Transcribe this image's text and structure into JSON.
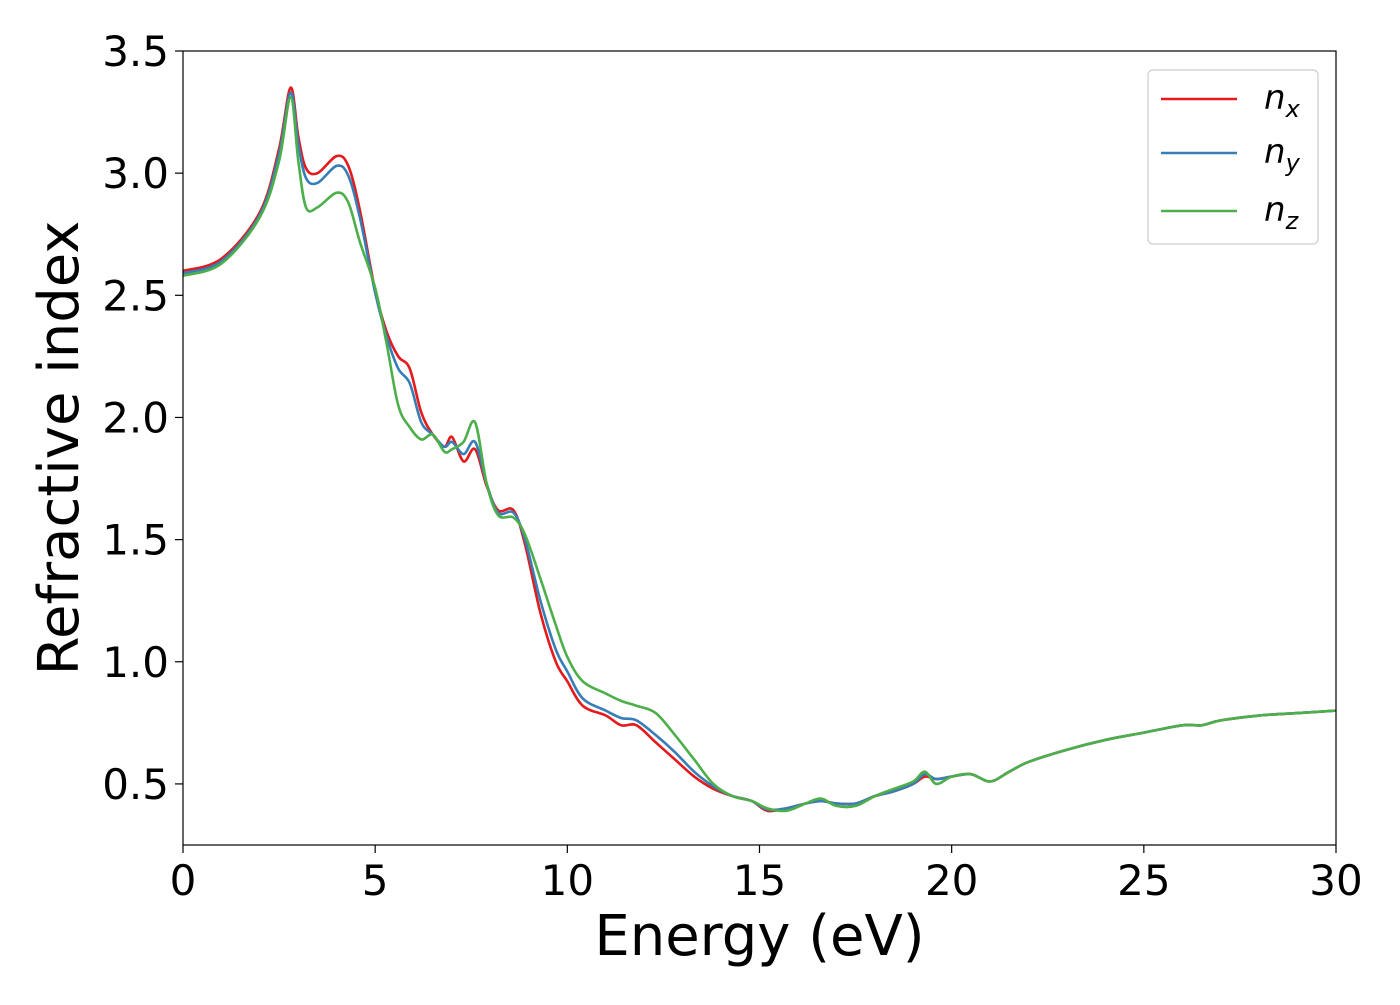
{
  "chart_data": {
    "type": "line",
    "title": "",
    "xlabel": "Energy (eV)",
    "ylabel": "Refractive index",
    "xlim": [
      0,
      30
    ],
    "ylim": [
      0.25,
      3.5
    ],
    "xticks": [
      0,
      5,
      10,
      15,
      20,
      25,
      30
    ],
    "xtick_labels": [
      "0",
      "5",
      "10",
      "15",
      "20",
      "25",
      "30"
    ],
    "yticks": [
      0.5,
      1.0,
      1.5,
      2.0,
      2.5,
      3.0,
      3.5
    ],
    "ytick_labels": [
      "0.5",
      "1.0",
      "1.5",
      "2.0",
      "2.5",
      "3.0",
      "3.5"
    ],
    "grid": false,
    "legend_position": "top-right",
    "series": [
      {
        "name": "n_x",
        "base": "n",
        "sub": "x",
        "color": "#e41a1c",
        "x": [
          0,
          1,
          2,
          2.5,
          2.8,
          3.0,
          3.2,
          3.5,
          4.0,
          4.3,
          4.6,
          5.0,
          5.3,
          5.6,
          5.9,
          6.2,
          6.5,
          6.8,
          7.0,
          7.3,
          7.6,
          7.9,
          8.2,
          8.6,
          8.9,
          9.3,
          9.7,
          10.0,
          10.4,
          11.0,
          11.4,
          11.8,
          12.3,
          12.8,
          13.3,
          13.8,
          14.3,
          14.8,
          15.2,
          15.7,
          16.2,
          16.6,
          17.0,
          17.5,
          18.0,
          18.5,
          19.0,
          19.3,
          19.6,
          20.0,
          20.5,
          21.0,
          21.5,
          22.0,
          23.0,
          24.0,
          25.0,
          26.0,
          26.5,
          27.0,
          28.0,
          29.0,
          30.0
        ],
        "y": [
          2.6,
          2.65,
          2.84,
          3.1,
          3.35,
          3.15,
          3.02,
          3.0,
          3.07,
          3.03,
          2.85,
          2.52,
          2.35,
          2.25,
          2.2,
          2.02,
          1.93,
          1.88,
          1.92,
          1.82,
          1.87,
          1.72,
          1.62,
          1.62,
          1.48,
          1.2,
          1.0,
          0.92,
          0.82,
          0.78,
          0.74,
          0.74,
          0.67,
          0.6,
          0.53,
          0.48,
          0.45,
          0.43,
          0.39,
          0.4,
          0.42,
          0.43,
          0.42,
          0.42,
          0.45,
          0.47,
          0.5,
          0.53,
          0.52,
          0.53,
          0.54,
          0.51,
          0.55,
          0.59,
          0.64,
          0.68,
          0.71,
          0.74,
          0.74,
          0.76,
          0.78,
          0.79,
          0.8
        ]
      },
      {
        "name": "n_y",
        "base": "n",
        "sub": "y",
        "color": "#377eb8",
        "x": [
          0,
          1,
          2,
          2.5,
          2.8,
          3.0,
          3.2,
          3.5,
          4.0,
          4.3,
          4.6,
          5.0,
          5.3,
          5.6,
          5.9,
          6.2,
          6.5,
          6.8,
          7.0,
          7.3,
          7.6,
          7.9,
          8.2,
          8.6,
          8.9,
          9.3,
          9.7,
          10.0,
          10.4,
          11.0,
          11.4,
          11.8,
          12.3,
          12.8,
          13.3,
          13.8,
          14.3,
          14.8,
          15.2,
          15.7,
          16.2,
          16.6,
          17.0,
          17.5,
          18.0,
          18.5,
          19.0,
          19.3,
          19.6,
          20.0,
          20.5,
          21.0,
          21.5,
          22.0,
          23.0,
          24.0,
          25.0,
          26.0,
          26.5,
          27.0,
          28.0,
          29.0,
          30.0
        ],
        "y": [
          2.59,
          2.64,
          2.83,
          3.08,
          3.33,
          3.12,
          2.98,
          2.96,
          3.03,
          2.99,
          2.82,
          2.51,
          2.33,
          2.2,
          2.14,
          1.98,
          1.93,
          1.88,
          1.9,
          1.85,
          1.9,
          1.73,
          1.61,
          1.61,
          1.5,
          1.25,
          1.05,
          0.96,
          0.85,
          0.8,
          0.77,
          0.76,
          0.7,
          0.63,
          0.55,
          0.49,
          0.45,
          0.43,
          0.395,
          0.4,
          0.42,
          0.43,
          0.42,
          0.42,
          0.45,
          0.47,
          0.5,
          0.54,
          0.52,
          0.53,
          0.54,
          0.51,
          0.55,
          0.59,
          0.64,
          0.68,
          0.71,
          0.74,
          0.74,
          0.76,
          0.78,
          0.79,
          0.8
        ]
      },
      {
        "name": "n_z",
        "base": "n",
        "sub": "z",
        "color": "#4daf4a",
        "x": [
          0,
          1,
          2,
          2.5,
          2.8,
          3.0,
          3.2,
          3.5,
          4.0,
          4.3,
          4.6,
          5.0,
          5.3,
          5.6,
          5.9,
          6.2,
          6.5,
          6.8,
          7.0,
          7.3,
          7.6,
          7.9,
          8.2,
          8.6,
          8.9,
          9.3,
          9.7,
          10.0,
          10.4,
          11.0,
          11.4,
          11.8,
          12.3,
          12.8,
          13.3,
          13.8,
          14.3,
          14.8,
          15.2,
          15.7,
          16.2,
          16.6,
          17.0,
          17.5,
          18.0,
          18.5,
          19.0,
          19.3,
          19.6,
          20.0,
          20.5,
          21.0,
          21.5,
          22.0,
          23.0,
          24.0,
          25.0,
          26.0,
          26.5,
          27.0,
          28.0,
          29.0,
          30.0
        ],
        "y": [
          2.58,
          2.63,
          2.82,
          3.05,
          3.31,
          3.05,
          2.86,
          2.86,
          2.92,
          2.88,
          2.72,
          2.53,
          2.3,
          2.05,
          1.96,
          1.91,
          1.93,
          1.86,
          1.87,
          1.9,
          1.98,
          1.73,
          1.6,
          1.59,
          1.52,
          1.34,
          1.15,
          1.02,
          0.92,
          0.87,
          0.84,
          0.82,
          0.79,
          0.7,
          0.6,
          0.5,
          0.45,
          0.43,
          0.4,
          0.39,
          0.42,
          0.44,
          0.41,
          0.41,
          0.45,
          0.48,
          0.51,
          0.55,
          0.5,
          0.53,
          0.54,
          0.51,
          0.55,
          0.59,
          0.64,
          0.68,
          0.71,
          0.74,
          0.74,
          0.76,
          0.78,
          0.79,
          0.8
        ]
      }
    ]
  }
}
